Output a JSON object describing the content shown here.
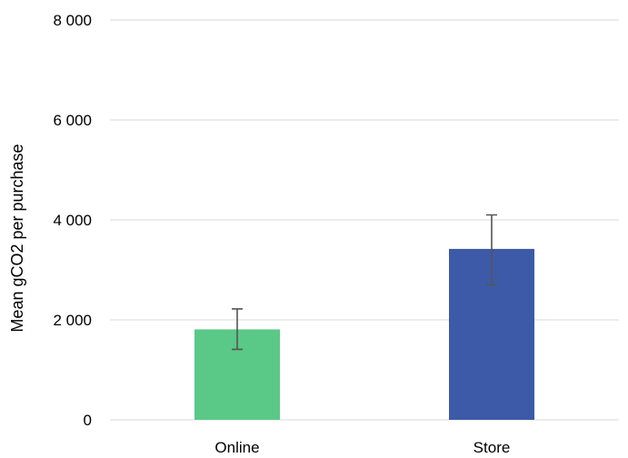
{
  "chart_data": {
    "type": "bar",
    "title": "",
    "xlabel": "",
    "ylabel": "Mean gCO2 per purchase",
    "ylim": [
      0,
      8000
    ],
    "yticks": [
      0,
      2000,
      4000,
      6000,
      8000
    ],
    "ytick_labels": [
      "0",
      "2 000",
      "4 000",
      "6 000",
      "8 000"
    ],
    "categories": [
      "Online",
      "Store"
    ],
    "values": [
      1810,
      3420
    ],
    "error_low": [
      1410,
      2700
    ],
    "error_high": [
      2220,
      4100
    ],
    "colors": [
      "#5ac887",
      "#3c5aa8"
    ],
    "grid": true,
    "legend": "none"
  }
}
